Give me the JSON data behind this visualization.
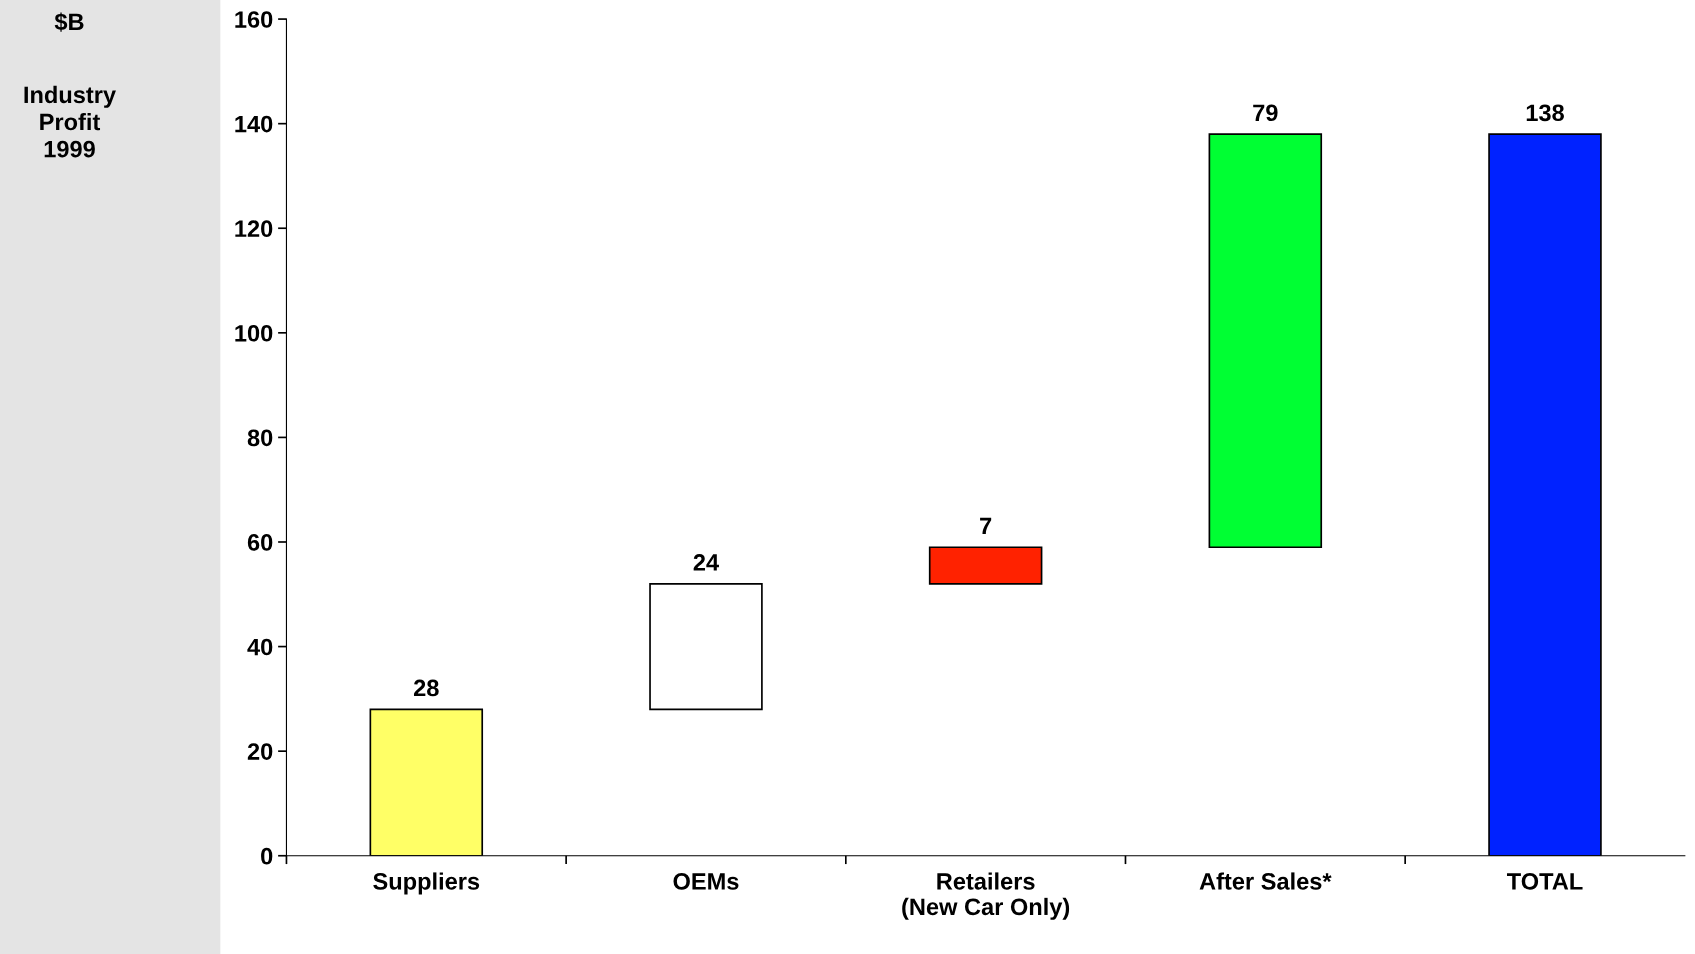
{
  "chart_data": {
    "type": "bar",
    "annotations": [
      "$B"
    ],
    "subtitle": "Industry\nProfit\n1999",
    "categories": [
      "Suppliers",
      "OEMs",
      "Retailers\n(New Car Only)",
      "After Sales*",
      "TOTAL"
    ],
    "values": [
      28,
      24,
      7,
      79,
      138
    ],
    "base": [
      0,
      28,
      52,
      59,
      0
    ],
    "colors": [
      "#ffff66",
      "#ffffff",
      "#ff2200",
      "#00ff33",
      "#0022ff"
    ],
    "ylim": [
      0,
      160
    ],
    "yticks": [
      0,
      20,
      40,
      60,
      80,
      100,
      120,
      140,
      160
    ],
    "data_labels": true,
    "grid": false,
    "legend": false
  }
}
